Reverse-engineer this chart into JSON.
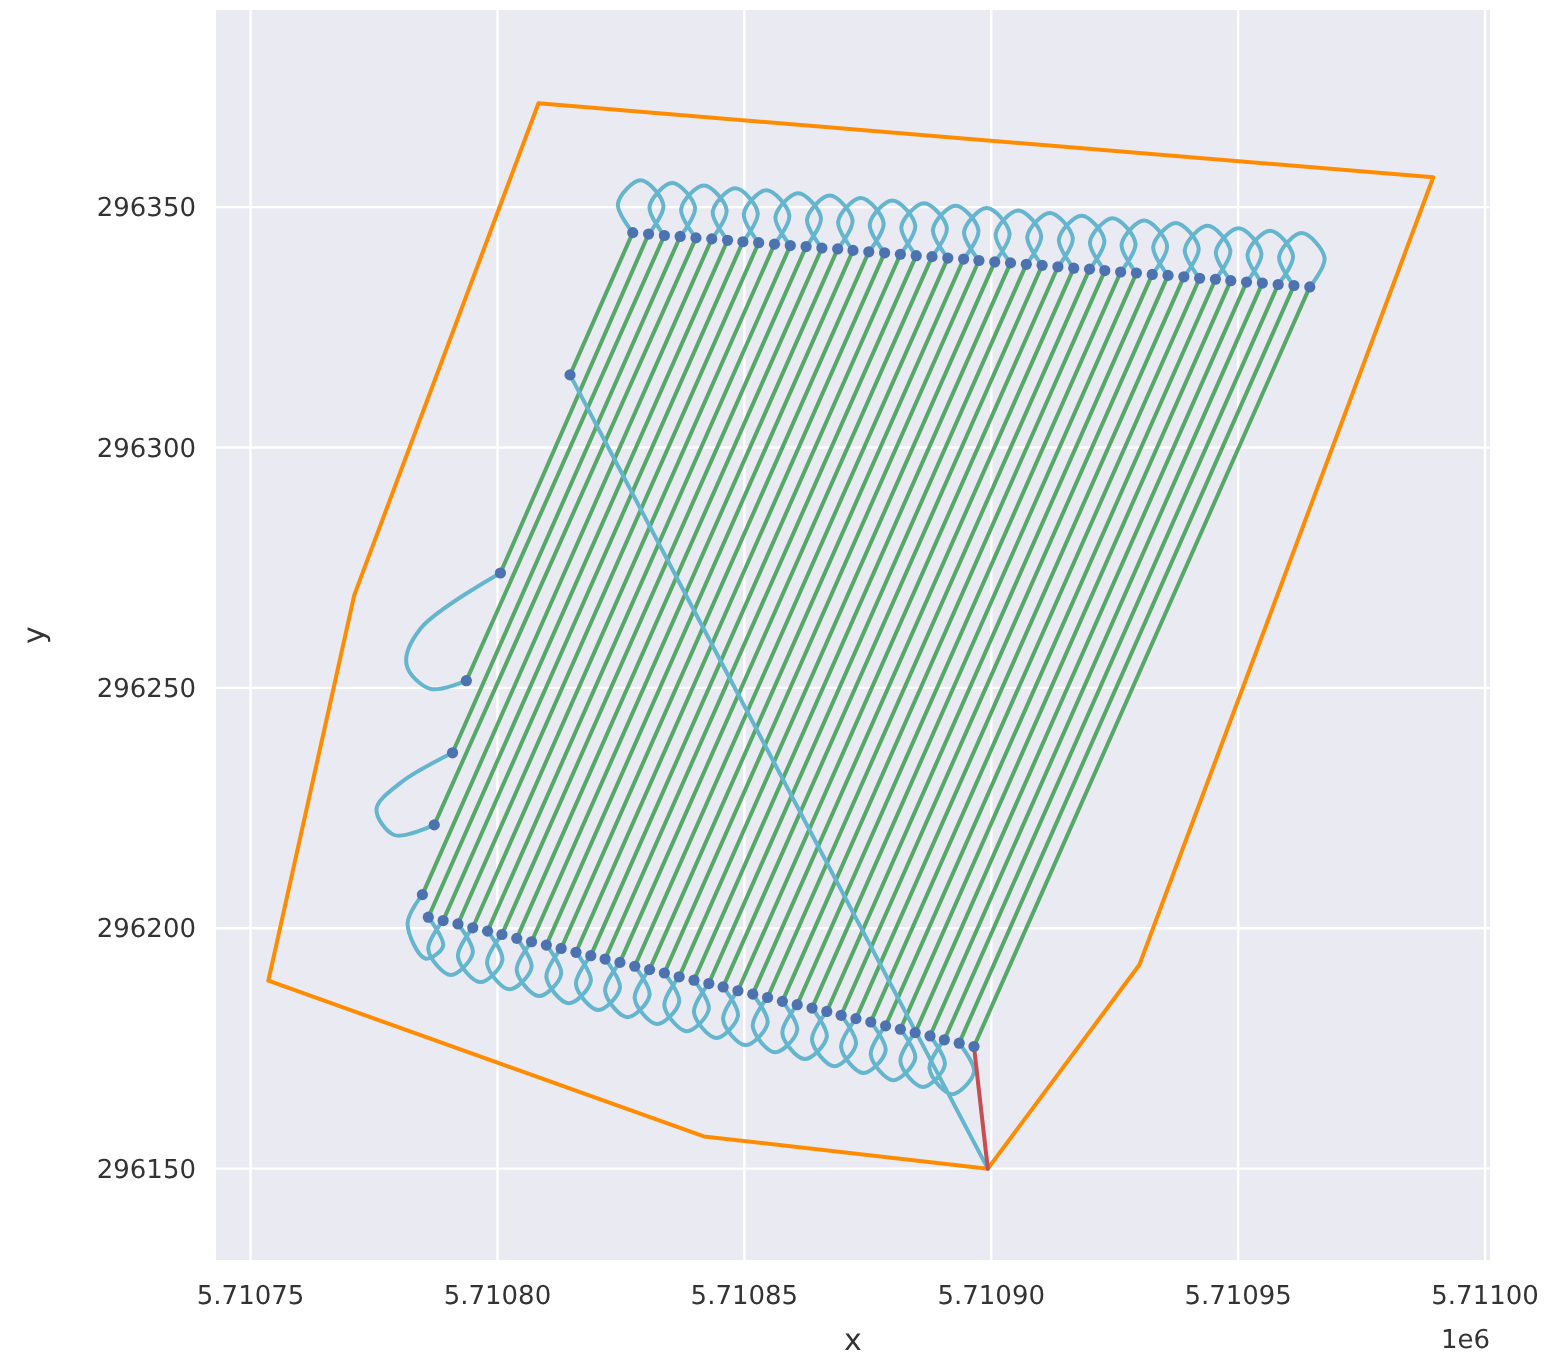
{
  "chart_data": {
    "type": "line",
    "xlabel": "x",
    "ylabel": "y",
    "annotations": [
      "1e6"
    ],
    "xlim": [
      5.710743,
      5.711001
    ],
    "ylim": [
      296131,
      296391
    ],
    "xticks": [
      5.71075,
      {
        "value": 5.7108,
        "label": "5.71080"
      },
      5.71085,
      {
        "value": 5.7109,
        "label": "5.71090"
      },
      5.71095,
      {
        "value": 5.711,
        "label": "5.71100"
      }
    ],
    "yticks": [
      296150,
      296200,
      296250,
      296300,
      296350
    ],
    "grid": true,
    "series": [
      {
        "color": "#ff8c00",
        "x": [
          5.7107536,
          5.710771,
          5.7108083,
          5.7109895,
          null,
          5.7107536,
          5.7108418,
          5.7108993,
          5.71093,
          5.7109895
        ],
        "values": [
          296189.1,
          296269.3,
          296371.6,
          296356.2,
          null,
          296189.1,
          296156.7,
          296150.0,
          296192.4,
          296356.2
        ]
      },
      {
        "color": "#55a868",
        "x": [
          5.7108147,
          5.7108274,
          null,
          5.7108006,
          5.7108306,
          null,
          5.7107937,
          5.7108338,
          null,
          5.7107909,
          5.710837,
          null,
          5.7107872,
          5.7108402,
          null,
          5.7107848,
          5.7108434,
          null,
          5.710786,
          5.7108466,
          null,
          5.710789,
          5.7108497,
          null,
          5.710792,
          5.7108529,
          null,
          5.710795,
          5.7108561,
          null,
          5.710798,
          5.7108593,
          null,
          5.7108009,
          5.7108625,
          null,
          5.7108039,
          5.7108657,
          null,
          5.7108069,
          5.7108689,
          null,
          5.7108099,
          5.710872,
          null,
          5.7108129,
          5.7108752,
          null,
          5.7108159,
          5.7108784,
          null,
          5.7108189,
          5.7108816,
          null,
          5.7108218,
          5.7108848,
          null,
          5.7108248,
          5.710888,
          null,
          5.7108278,
          5.7108912,
          null,
          5.7108308,
          5.7108944,
          null,
          5.7108338,
          5.7108975,
          null,
          5.7108368,
          5.7109007,
          null,
          5.7108398,
          5.7109039,
          null,
          5.7108428,
          5.7109071,
          null,
          5.7108457,
          5.7109103,
          null,
          5.7108487,
          5.7109135,
          null,
          5.7108517,
          5.7109167,
          null,
          5.7108547,
          5.7109199,
          null,
          5.7108577,
          5.710923,
          null,
          5.7108607,
          5.7109262,
          null,
          5.7108637,
          5.7109294,
          null,
          5.7108667,
          5.7109326,
          null,
          5.7108696,
          5.7109358,
          null,
          5.7108726,
          5.710939,
          null,
          5.7108756,
          5.7109422,
          null,
          5.7108786,
          5.7109454,
          null,
          5.7108816,
          5.7109485,
          null,
          5.7108846,
          5.7109517,
          null,
          5.7108876,
          5.7109549,
          null,
          5.7108905,
          5.7109581,
          null,
          5.7108935,
          5.7109613,
          null,
          5.7108965,
          5.7109645
        ],
        "values": [
          296315.1,
          296344.7,
          null,
          296273.9,
          296344.4,
          null,
          296251.5,
          296344.1,
          null,
          296236.5,
          296343.9,
          null,
          296221.5,
          296343.6,
          null,
          296207.0,
          296343.4,
          null,
          296202.3,
          296343.1,
          null,
          296201.6,
          296342.8,
          null,
          296200.9,
          296342.6,
          null,
          296200.1,
          296342.3,
          null,
          296199.4,
          296342.0,
          null,
          296198.7,
          296341.8,
          null,
          296197.9,
          296341.5,
          null,
          296197.2,
          296341.3,
          null,
          296196.5,
          296341.0,
          null,
          296195.8,
          296340.7,
          null,
          296195.0,
          296340.5,
          null,
          296194.3,
          296340.2,
          null,
          296193.6,
          296339.9,
          null,
          296192.9,
          296339.7,
          null,
          296192.1,
          296339.4,
          null,
          296191.4,
          296339.2,
          null,
          296190.7,
          296338.9,
          null,
          296189.9,
          296338.6,
          null,
          296189.2,
          296338.4,
          null,
          296188.5,
          296338.1,
          null,
          296187.8,
          296337.9,
          null,
          296187.0,
          296337.6,
          null,
          296186.3,
          296337.3,
          null,
          296185.6,
          296337.1,
          null,
          296184.8,
          296336.8,
          null,
          296184.1,
          296336.5,
          null,
          296183.4,
          296336.3,
          null,
          296182.7,
          296336.0,
          null,
          296181.9,
          296335.8,
          null,
          296181.2,
          296335.5,
          null,
          296180.5,
          296335.2,
          null,
          296179.7,
          296335.0,
          null,
          296179.0,
          296334.7,
          null,
          296178.3,
          296334.4,
          null,
          296177.6,
          296334.2,
          null,
          296176.8,
          296333.9,
          null,
          296176.1,
          296333.7,
          null,
          296175.4,
          296333.4
        ]
      },
      {
        "color": "#64b5cd",
        "x": [
          5.7108993,
          5.7108147,
          null,
          5.7108006,
          5.7107844,
          5.7107816,
          5.7107864,
          5.7107937,
          null,
          5.7107909,
          5.7107803,
          5.7107755,
          5.7107791,
          5.7107872,
          null,
          5.7107848,
          5.7107818,
          5.7107854,
          5.710789,
          5.710786,
          null,
          5.710789,
          5.710786,
          5.7107905,
          5.710795,
          5.710792,
          null,
          5.710795,
          5.710792,
          5.7107965,
          5.710801,
          5.710798,
          null,
          5.7108009,
          5.7107979,
          5.7108024,
          5.7108069,
          5.7108039,
          null,
          5.7108069,
          5.7108039,
          5.7108084,
          5.7108129,
          5.7108099,
          null,
          5.7108129,
          5.7108099,
          5.7108144,
          5.7108189,
          5.7108159,
          null,
          5.7108189,
          5.7108159,
          5.7108204,
          5.7108248,
          5.7108218,
          null,
          5.7108248,
          5.7108218,
          5.7108263,
          5.7108308,
          5.7108278,
          null,
          5.7108308,
          5.7108278,
          5.7108323,
          5.7108368,
          5.7108338,
          null,
          5.7108368,
          5.7108338,
          5.7108383,
          5.7108428,
          5.7108398,
          null,
          5.7108428,
          5.7108398,
          5.7108443,
          5.7108487,
          5.7108457,
          null,
          5.7108487,
          5.7108457,
          5.7108502,
          5.7108547,
          5.7108517,
          null,
          5.7108547,
          5.7108517,
          5.7108562,
          5.7108607,
          5.7108577,
          null,
          5.7108607,
          5.7108577,
          5.7108622,
          5.7108667,
          5.7108637,
          null,
          5.7108667,
          5.7108637,
          5.7108682,
          5.7108726,
          5.7108696,
          null,
          5.7108726,
          5.7108696,
          5.7108741,
          5.7108786,
          5.7108756,
          null,
          5.7108786,
          5.7108756,
          5.7108801,
          5.7108846,
          5.7108816,
          null,
          5.7108846,
          5.7108816,
          5.7108861,
          5.7108906,
          5.7108876,
          null,
          5.7108905,
          5.7108875,
          5.710892,
          5.7108965,
          5.7108935,
          null,
          5.7108274,
          5.7108244,
          5.710829,
          5.7108336,
          5.7108306,
          null,
          5.7108338,
          5.7108308,
          5.7108354,
          5.71084,
          5.710837,
          null,
          5.7108402,
          5.7108372,
          5.7108418,
          5.7108464,
          5.7108434,
          null,
          5.7108466,
          5.7108436,
          5.7108482,
          5.7108527,
          5.7108497,
          null,
          5.7108529,
          5.7108499,
          5.7108545,
          5.7108591,
          5.7108561,
          null,
          5.7108593,
          5.7108563,
          5.7108609,
          5.7108655,
          5.7108625,
          null,
          5.7108657,
          5.7108627,
          5.7108673,
          5.7108719,
          5.7108689,
          null,
          5.710872,
          5.710869,
          5.7108736,
          5.7108782,
          5.7108752,
          null,
          5.7108784,
          5.7108754,
          5.71088,
          5.7108846,
          5.7108816,
          null,
          5.7108848,
          5.7108818,
          5.7108864,
          5.710891,
          5.710888,
          null,
          5.7108912,
          5.7108882,
          5.7108928,
          5.7108974,
          5.7108944,
          null,
          5.7108975,
          5.7108945,
          5.7108991,
          5.7109037,
          5.7109007,
          null,
          5.7109039,
          5.7109009,
          5.7109055,
          5.7109101,
          5.7109071,
          null,
          5.7109103,
          5.7109073,
          5.7109119,
          5.7109165,
          5.7109135,
          null,
          5.7109167,
          5.7109137,
          5.7109183,
          5.7109229,
          5.7109199,
          null,
          5.710923,
          5.71092,
          5.7109246,
          5.7109292,
          5.7109262,
          null,
          5.7109294,
          5.7109264,
          5.710931,
          5.7109356,
          5.7109326,
          null,
          5.7109358,
          5.7109328,
          5.7109374,
          5.710942,
          5.710939,
          null,
          5.7109422,
          5.7109392,
          5.7109438,
          5.7109484,
          5.7109454,
          null,
          5.7109485,
          5.7109455,
          5.7109501,
          5.7109547,
          5.7109517,
          null,
          5.7109549,
          5.7109519,
          5.7109565,
          5.7109611,
          5.7109581,
          null,
          5.7109613,
          5.7109583,
          5.7109629,
          5.7109675,
          5.7109645
        ],
        "values": [
          296150.0,
          296315.1,
          null,
          296273.9,
          296262.3,
          296254.8,
          296249.8,
          296251.5,
          null,
          296236.5,
          296230.2,
          296224.8,
          296219.4,
          296221.5,
          null,
          296207.0,
          296201.0,
          296193.7,
          296196.3,
          296202.3,
          null,
          296201.6,
          296195.6,
          296190.3,
          296194.9,
          296200.9,
          null,
          296200.1,
          296194.1,
          296188.8,
          296193.4,
          296199.4,
          null,
          296198.7,
          296192.7,
          296187.3,
          296191.9,
          296197.9,
          null,
          296197.2,
          296191.2,
          296185.9,
          296190.5,
          296196.5,
          null,
          296195.8,
          296189.8,
          296184.4,
          296189.0,
          296195.0,
          null,
          296194.3,
          296188.3,
          296183.0,
          296187.6,
          296193.6,
          null,
          296192.9,
          296186.9,
          296181.5,
          296186.1,
          296192.1,
          null,
          296191.4,
          296185.4,
          296180.1,
          296184.7,
          296190.7,
          null,
          296189.9,
          296183.9,
          296178.6,
          296183.2,
          296189.2,
          null,
          296188.5,
          296182.5,
          296177.2,
          296181.8,
          296187.8,
          null,
          296187.0,
          296181.0,
          296175.7,
          296180.3,
          296186.3,
          null,
          296185.6,
          296179.6,
          296174.2,
          296178.8,
          296184.8,
          null,
          296184.1,
          296178.1,
          296172.8,
          296177.4,
          296183.4,
          null,
          296182.7,
          296176.7,
          296171.3,
          296175.9,
          296181.9,
          null,
          296181.2,
          296175.2,
          296169.9,
          296174.5,
          296180.5,
          null,
          296179.7,
          296173.7,
          296168.4,
          296173.0,
          296179.0,
          null,
          296178.3,
          296172.3,
          296167.0,
          296171.6,
          296177.6,
          null,
          296176.8,
          296170.8,
          296165.5,
          296170.1,
          296176.1,
          null,
          296344.7,
          296350.7,
          296355.6,
          296350.4,
          296344.4,
          null,
          296344.1,
          296350.1,
          296355.0,
          296349.9,
          296343.9,
          null,
          296343.6,
          296349.6,
          296354.5,
          296349.4,
          296343.4,
          null,
          296343.1,
          296349.1,
          296353.9,
          296348.8,
          296342.8,
          null,
          296342.6,
          296348.6,
          296353.5,
          296348.3,
          296342.3,
          null,
          296342.0,
          296348.0,
          296352.9,
          296347.8,
          296341.8,
          null,
          296341.5,
          296347.5,
          296352.4,
          296347.3,
          296341.3,
          null,
          296341.0,
          296347.0,
          296351.9,
          296346.7,
          296340.7,
          null,
          296340.5,
          296346.5,
          296351.4,
          296346.2,
          296340.2,
          null,
          296339.9,
          296345.9,
          296350.8,
          296345.7,
          296339.7,
          null,
          296339.4,
          296345.4,
          296350.3,
          296345.2,
          296339.2,
          null,
          296338.9,
          296344.9,
          296349.8,
          296344.6,
          296338.6,
          null,
          296338.4,
          296344.4,
          296349.3,
          296344.1,
          296338.1,
          null,
          296337.9,
          296343.9,
          296348.8,
          296343.6,
          296337.6,
          null,
          296337.3,
          296343.3,
          296348.2,
          296343.1,
          296337.1,
          null,
          296336.8,
          296342.8,
          296347.7,
          296342.5,
          296336.5,
          null,
          296336.3,
          296342.3,
          296347.2,
          296342.0,
          296336.0,
          null,
          296335.8,
          296341.8,
          296346.7,
          296341.5,
          296335.5,
          null,
          296335.2,
          296341.2,
          296346.1,
          296341.0,
          296335.0,
          null,
          296334.7,
          296340.7,
          296345.6,
          296340.4,
          296334.4,
          null,
          296334.2,
          296340.2,
          296345.1,
          296339.9,
          296333.9,
          null,
          296333.7,
          296339.7,
          296344.6,
          296339.4,
          296333.4
        ]
      },
      {
        "color": "#c44e52",
        "x": [
          5.7108993,
          5.7108965
        ],
        "values": [
          296150.0,
          296175.4
        ]
      },
      {
        "type": "scatter",
        "color": "#4c72b0",
        "marker": "circle",
        "x": [
          5.7108147,
          5.7108274,
          5.7108006,
          5.7108306,
          5.7107937,
          5.7108338,
          5.7107909,
          5.710837,
          5.7107872,
          5.7108402,
          5.7107848,
          5.7108434,
          5.710786,
          5.7108466,
          5.710789,
          5.7108497,
          5.710792,
          5.7108529,
          5.710795,
          5.7108561,
          5.710798,
          5.7108593,
          5.7108009,
          5.7108625,
          5.7108039,
          5.7108657,
          5.7108069,
          5.7108689,
          5.7108099,
          5.710872,
          5.7108129,
          5.7108752,
          5.7108159,
          5.7108784,
          5.7108189,
          5.7108816,
          5.7108218,
          5.7108848,
          5.7108248,
          5.710888,
          5.7108278,
          5.7108912,
          5.7108308,
          5.7108944,
          5.7108338,
          5.7108975,
          5.7108368,
          5.7109007,
          5.7108398,
          5.7109039,
          5.7108428,
          5.7109071,
          5.7108457,
          5.7109103,
          5.7108487,
          5.7109135,
          5.7108517,
          5.7109167,
          5.7108547,
          5.7109199,
          5.7108577,
          5.710923,
          5.7108607,
          5.7109262,
          5.7108637,
          5.7109294,
          5.7108667,
          5.7109326,
          5.7108696,
          5.7109358,
          5.7108726,
          5.710939,
          5.7108756,
          5.7109422,
          5.7108786,
          5.7109454,
          5.7108816,
          5.7109485,
          5.7108846,
          5.7109517,
          5.7108876,
          5.7109549,
          5.7108905,
          5.7109581,
          5.7108935,
          5.7109613,
          5.7108965,
          5.7109645
        ],
        "values": [
          296315.1,
          296344.7,
          296273.9,
          296344.4,
          296251.5,
          296344.1,
          296236.5,
          296343.9,
          296221.5,
          296343.6,
          296207.0,
          296343.4,
          296202.3,
          296343.1,
          296201.6,
          296342.8,
          296200.9,
          296342.6,
          296200.1,
          296342.3,
          296199.4,
          296342.0,
          296198.7,
          296341.8,
          296197.9,
          296341.5,
          296197.2,
          296341.3,
          296196.5,
          296341.0,
          296195.8,
          296340.7,
          296195.0,
          296340.5,
          296194.3,
          296340.2,
          296193.6,
          296339.9,
          296192.9,
          296339.7,
          296192.1,
          296339.4,
          296191.4,
          296339.2,
          296190.7,
          296338.9,
          296189.9,
          296338.6,
          296189.2,
          296338.4,
          296188.5,
          296338.1,
          296187.8,
          296337.9,
          296187.0,
          296337.6,
          296186.3,
          296337.3,
          296185.6,
          296337.1,
          296184.8,
          296336.8,
          296184.1,
          296336.5,
          296183.4,
          296336.3,
          296182.7,
          296336.0,
          296181.9,
          296335.8,
          296181.2,
          296335.5,
          296180.5,
          296335.2,
          296179.7,
          296335.0,
          296179.0,
          296334.7,
          296178.3,
          296334.4,
          296177.6,
          296334.2,
          296176.8,
          296333.9,
          296176.1,
          296333.7,
          296175.4,
          296333.4
        ]
      }
    ]
  }
}
